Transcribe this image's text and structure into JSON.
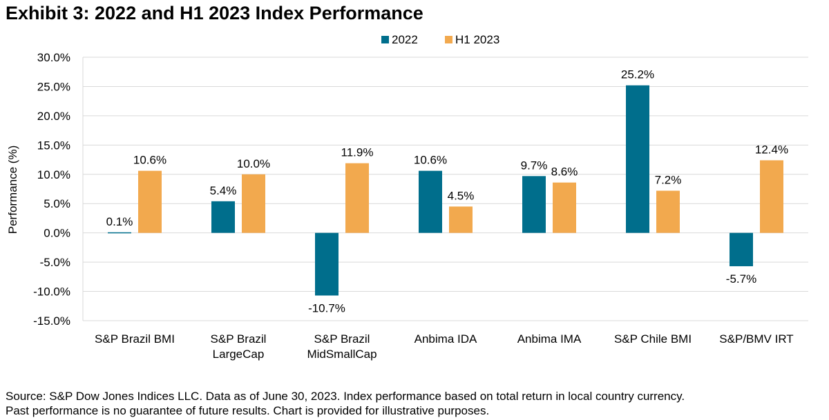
{
  "title": "Exhibit 3: 2022 and H1 2023 Index Performance",
  "source": {
    "line1": "Source: S&P Dow Jones Indices LLC. Data as of June 30, 2023. Index performance based on total return in local country currency.",
    "line2": "Past performance is no guarantee of future results. Chart is provided for illustrative purposes."
  },
  "chart_data": {
    "type": "bar",
    "categories": [
      [
        "S&P Brazil BMI"
      ],
      [
        "S&P Brazil",
        "LargeCap"
      ],
      [
        "S&P Brazil",
        "MidSmallCap"
      ],
      [
        "Anbima IDA"
      ],
      [
        "Anbima IMA"
      ],
      [
        "S&P Chile BMI"
      ],
      [
        "S&P/BMV IRT"
      ]
    ],
    "series": [
      {
        "name": "2022",
        "color": "#006E8C",
        "values": [
          0.1,
          5.4,
          -10.7,
          10.6,
          9.7,
          25.2,
          -5.7
        ],
        "labels": [
          "0.1%",
          "5.4%",
          "-10.7%",
          "10.6%",
          "9.7%",
          "25.2%",
          "-5.7%"
        ]
      },
      {
        "name": "H1 2023",
        "color": "#F2A94E",
        "values": [
          10.6,
          10.0,
          11.9,
          4.5,
          8.6,
          7.2,
          12.4
        ],
        "labels": [
          "10.6%",
          "10.0%",
          "11.9%",
          "4.5%",
          "8.6%",
          "7.2%",
          "12.4%"
        ]
      }
    ],
    "ylabel": "Performance (%)",
    "ylim": [
      -15,
      30
    ],
    "yticks": [
      30,
      25,
      20,
      15,
      10,
      5,
      0,
      -5,
      -10,
      -15
    ],
    "ytick_labels": [
      "30.0%",
      "25.0%",
      "20.0%",
      "15.0%",
      "10.0%",
      "5.0%",
      "0.0%",
      "-5.0%",
      "-10.0%",
      "-15.0%"
    ],
    "grid": true,
    "legend": "top-center"
  }
}
